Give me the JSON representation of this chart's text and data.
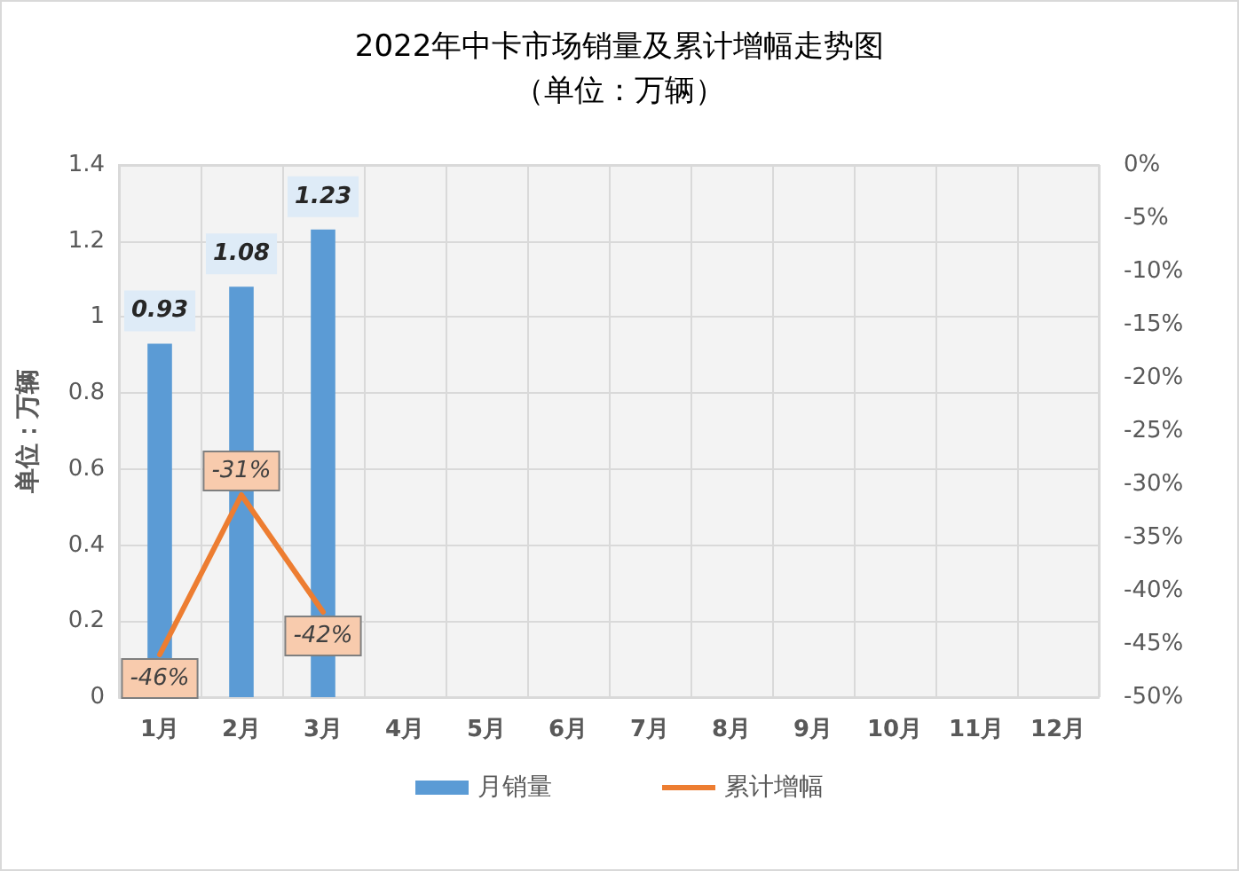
{
  "chart_data": {
    "type": "bar",
    "title": "2022年中卡市场销量及累计增幅走势图",
    "subtitle": "（单位：万辆）",
    "ylabel": "单位：万辆",
    "categories": [
      "1月",
      "2月",
      "3月",
      "4月",
      "5月",
      "6月",
      "7月",
      "8月",
      "9月",
      "10月",
      "11月",
      "12月"
    ],
    "series": [
      {
        "name": "月销量",
        "color": "#5b9bd5",
        "values": [
          0.93,
          1.08,
          1.23,
          null,
          null,
          null,
          null,
          null,
          null,
          null,
          null,
          null
        ],
        "value_labels": [
          "0.93",
          "1.08",
          "1.23",
          null,
          null,
          null,
          null,
          null,
          null,
          null,
          null,
          null
        ]
      },
      {
        "name": "累计增幅",
        "type": "line",
        "axis": "y2",
        "color": "#ed7d31",
        "values": [
          -46,
          -31,
          -42,
          null,
          null,
          null,
          null,
          null,
          null,
          null,
          null,
          null
        ],
        "value_labels": [
          "-46%",
          "-31%",
          "-42%",
          null,
          null,
          null,
          null,
          null,
          null,
          null,
          null,
          null
        ]
      }
    ],
    "ylim": [
      0,
      1.4
    ],
    "yticks": [
      0,
      0.2,
      0.4,
      0.6,
      0.8,
      1,
      1.2,
      1.4
    ],
    "y2lim": [
      -50,
      0
    ],
    "y2ticks": [
      {
        "value": 0,
        "label": "0%"
      },
      {
        "value": -5,
        "label": "-5%"
      },
      {
        "value": -10,
        "label": "-10%"
      },
      {
        "value": -15,
        "label": "-15%"
      },
      {
        "value": -20,
        "label": "-20%"
      },
      {
        "value": -25,
        "label": "-25%"
      },
      {
        "value": -30,
        "label": "-30%"
      },
      {
        "value": -35,
        "label": "-35%"
      },
      {
        "value": -40,
        "label": "-40%"
      },
      {
        "value": -45,
        "label": "-45%"
      },
      {
        "value": -50,
        "label": "-50%"
      }
    ],
    "grid": true,
    "legend": "bottom"
  }
}
